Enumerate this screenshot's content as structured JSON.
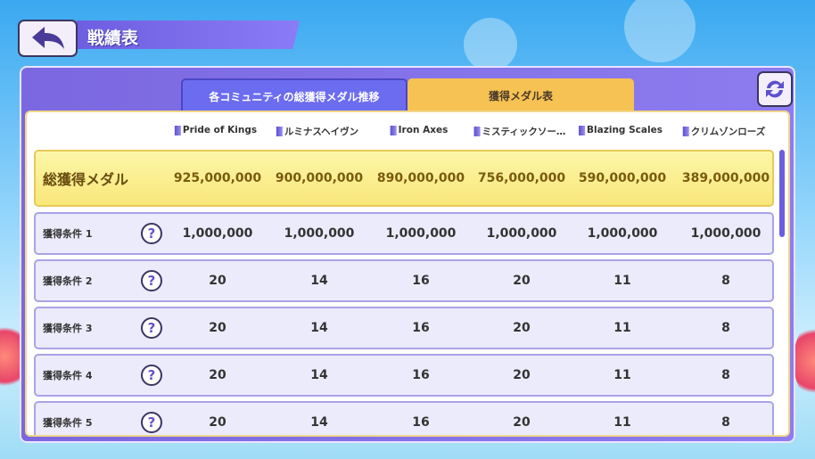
{
  "header": {
    "title": "戦績表",
    "back_icon": "back-arrow-icon"
  },
  "tabs": [
    {
      "label": "各コミュニティの総獲得メダル推移",
      "active": false
    },
    {
      "label": "獲得メダル表",
      "active": true
    }
  ],
  "refresh_icon": "refresh-icon",
  "communities": [
    "Pride of Kings",
    "ルミナスヘイヴン",
    "Iron Axes",
    "ミスティックソー…",
    "Blazing Scales",
    "クリムゾンローズ"
  ],
  "total": {
    "label": "総獲得メダル",
    "values": [
      "925,000,000",
      "900,000,000",
      "890,000,000",
      "756,000,000",
      "590,000,000",
      "389,000,000"
    ]
  },
  "conditions": [
    {
      "label": "獲得条件 1",
      "values": [
        "1,000,000",
        "1,000,000",
        "1,000,000",
        "1,000,000",
        "1,000,000",
        "1,000,000"
      ]
    },
    {
      "label": "獲得条件 2",
      "values": [
        "20",
        "14",
        "16",
        "20",
        "11",
        "8"
      ]
    },
    {
      "label": "獲得条件 3",
      "values": [
        "20",
        "14",
        "16",
        "20",
        "11",
        "8"
      ]
    },
    {
      "label": "獲得条件 4",
      "values": [
        "20",
        "14",
        "16",
        "20",
        "11",
        "8"
      ]
    },
    {
      "label": "獲得条件 5",
      "values": [
        "20",
        "14",
        "16",
        "20",
        "11",
        "8"
      ]
    }
  ],
  "help_glyph": "?",
  "colors": {
    "panel": "#7b68e0",
    "active_tab": "#f6c253",
    "total_row": "#f8e77a",
    "cond_row": "#ecebfb"
  }
}
